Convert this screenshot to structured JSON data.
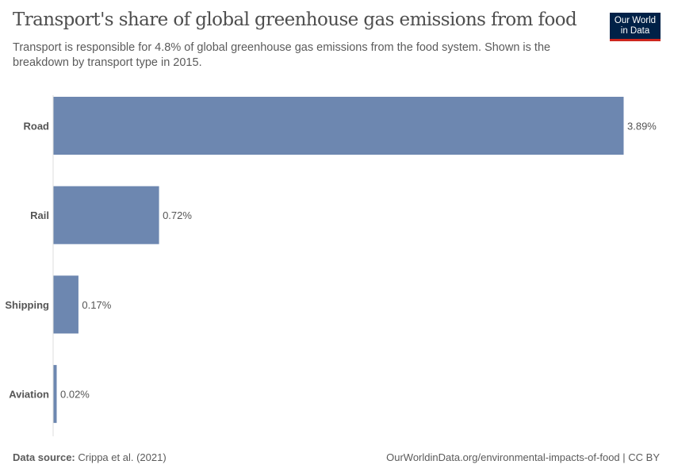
{
  "header": {
    "title": "Transport's share of global greenhouse gas emissions from food",
    "subtitle": "Transport is responsible for 4.8% of global greenhouse gas emissions from the food system. Shown is the breakdown by transport type in 2015.",
    "logo_line1": "Our World",
    "logo_line2": "in Data"
  },
  "chart_data": {
    "type": "bar",
    "orientation": "horizontal",
    "categories": [
      "Road",
      "Rail",
      "Shipping",
      "Aviation"
    ],
    "values": [
      3.89,
      0.72,
      0.17,
      0.02
    ],
    "labels": [
      "3.89%",
      "0.72%",
      "0.17%",
      "0.02%"
    ],
    "unit": "%",
    "xlim": [
      0,
      3.89
    ],
    "grid": false,
    "bar_color": "#6d87b0"
  },
  "footer": {
    "source_label": "Data source:",
    "source": " Crippa et al. (2021)",
    "url": "OurWorldinData.org/environmental-impacts-of-food | CC BY"
  }
}
